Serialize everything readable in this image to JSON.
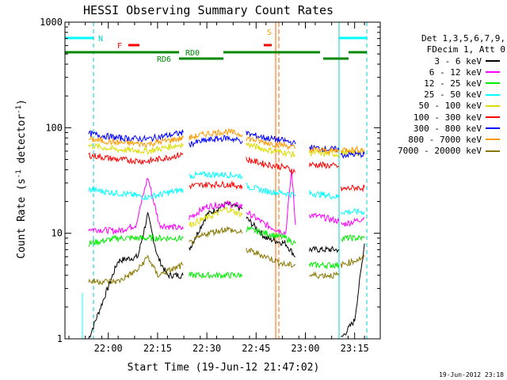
{
  "chart_data": {
    "type": "line",
    "title": "HESSI Observing Summary Count Rates",
    "xlabel": "Start Time (19-Jun-12 21:47:02)",
    "ylabel_prefix": "Count Rate (s",
    "ylabel_sup": "-1",
    "ylabel_mid": " detector",
    "ylabel_sup2": "-1",
    "ylabel_suffix": ")",
    "yscale": "log",
    "ylim": [
      1,
      1000
    ],
    "xlim_minutes": [
      21.78,
      23.38
    ],
    "xticks": [
      "22:00",
      "22:15",
      "22:30",
      "22:45",
      "23:00",
      "23:15"
    ],
    "yticks": [
      "1",
      "10",
      "100",
      "1000"
    ],
    "legend_header": [
      "Det 1,3,5,6,7,9,",
      "FDecim 1, Att 0"
    ],
    "series": [
      {
        "name": "3 - 6 keV",
        "color": "#000000",
        "segments": [
          {
            "x": [
              21.9,
              22.05,
              22.15,
              22.2,
              22.25,
              22.3,
              22.38
            ],
            "y": [
              1,
              5.5,
              6,
              15,
              6,
              4,
              4
            ]
          },
          {
            "x": [
              22.41,
              22.5,
              22.6,
              22.68
            ],
            "y": [
              7,
              15,
              19,
              17
            ]
          },
          {
            "x": [
              22.7,
              22.8,
              22.9,
              22.95
            ],
            "y": [
              14,
              9,
              8,
              6
            ]
          },
          {
            "x": [
              23.02,
              23.1,
              23.17
            ],
            "y": [
              7,
              7,
              7
            ]
          },
          {
            "x": [
              23.18,
              23.25,
              23.3
            ],
            "y": [
              1,
              1.5,
              8
            ]
          }
        ]
      },
      {
        "name": "6 - 12 keV",
        "color": "#ff00ff",
        "segments": [
          {
            "x": [
              21.9,
              22.05,
              22.14,
              22.2,
              22.26,
              22.38
            ],
            "y": [
              11,
              10.5,
              12,
              34,
              12,
              11
            ]
          },
          {
            "x": [
              22.41,
              22.5,
              22.6,
              22.68
            ],
            "y": [
              14,
              18,
              19,
              18
            ]
          },
          {
            "x": [
              22.7,
              22.8,
              22.9,
              22.93,
              22.95
            ],
            "y": [
              16,
              12,
              10,
              40,
              12
            ]
          },
          {
            "x": [
              23.02,
              23.1,
              23.17
            ],
            "y": [
              15,
              14,
              13
            ]
          },
          {
            "x": [
              23.18,
              23.25,
              23.3
            ],
            "y": [
              12,
              13,
              14
            ]
          }
        ]
      },
      {
        "name": "12 - 25 keV",
        "color": "#00ee00",
        "segments": [
          {
            "x": [
              21.9,
              22.05,
              22.2,
              22.38
            ],
            "y": [
              8,
              9,
              9,
              9
            ]
          },
          {
            "x": [
              22.41,
              22.5,
              22.6,
              22.68
            ],
            "y": [
              4,
              4,
              4,
              4
            ]
          },
          {
            "x": [
              22.7,
              22.8,
              22.9,
              22.95
            ],
            "y": [
              11,
              10,
              9,
              8
            ]
          },
          {
            "x": [
              23.02,
              23.1,
              23.17
            ],
            "y": [
              5,
              5,
              5
            ]
          },
          {
            "x": [
              23.18,
              23.25,
              23.3
            ],
            "y": [
              9,
              9,
              9
            ]
          }
        ]
      },
      {
        "name": "25 - 50 keV",
        "color": "#00ffff",
        "segments": [
          {
            "x": [
              21.9,
              22.05,
              22.2,
              22.38
            ],
            "y": [
              26,
              24,
              22,
              26
            ]
          },
          {
            "x": [
              22.41,
              22.5,
              22.6,
              22.68
            ],
            "y": [
              35,
              36,
              36,
              35
            ]
          },
          {
            "x": [
              22.7,
              22.8,
              22.9,
              22.95
            ],
            "y": [
              28,
              25,
              24,
              23
            ]
          },
          {
            "x": [
              23.02,
              23.1,
              23.17
            ],
            "y": [
              24,
              23,
              22
            ]
          },
          {
            "x": [
              23.18,
              23.25,
              23.3
            ],
            "y": [
              16,
              16,
              16
            ]
          }
        ]
      },
      {
        "name": "50 - 100 keV",
        "color": "#dddd00",
        "segments": [
          {
            "x": [
              21.9,
              22.05,
              22.2,
              22.38
            ],
            "y": [
              68,
              62,
              60,
              70
            ]
          },
          {
            "x": [
              22.41,
              22.5,
              22.6,
              22.68
            ],
            "y": [
              12,
              14,
              17,
              15
            ]
          },
          {
            "x": [
              22.7,
              22.8,
              22.9,
              22.95
            ],
            "y": [
              70,
              62,
              58,
              55
            ]
          },
          {
            "x": [
              23.02,
              23.1,
              23.17
            ],
            "y": [
              58,
              57,
              56
            ]
          },
          {
            "x": [
              23.18,
              23.25,
              23.3
            ],
            "y": [
              58,
              58,
              58
            ]
          }
        ]
      },
      {
        "name": "100 - 300 keV",
        "color": "#ff0000",
        "segments": [
          {
            "x": [
              21.9,
              22.05,
              22.2,
              22.38
            ],
            "y": [
              55,
              50,
              48,
              56
            ]
          },
          {
            "x": [
              22.41,
              22.5,
              22.6,
              22.68
            ],
            "y": [
              28,
              29,
              29,
              28
            ]
          },
          {
            "x": [
              22.7,
              22.8,
              22.9,
              22.95
            ],
            "y": [
              50,
              45,
              42,
              38
            ]
          },
          {
            "x": [
              23.02,
              23.1,
              23.17
            ],
            "y": [
              45,
              44,
              43
            ]
          },
          {
            "x": [
              23.18,
              23.25,
              23.3
            ],
            "y": [
              26,
              27,
              27
            ]
          }
        ]
      },
      {
        "name": "300 - 800 keV",
        "color": "#0000ff",
        "segments": [
          {
            "x": [
              21.9,
              22.05,
              22.2,
              22.38
            ],
            "y": [
              88,
              80,
              78,
              90
            ]
          },
          {
            "x": [
              22.41,
              22.5,
              22.6,
              22.68
            ],
            "y": [
              70,
              76,
              80,
              75
            ]
          },
          {
            "x": [
              22.7,
              22.8,
              22.9,
              22.95
            ],
            "y": [
              88,
              80,
              75,
              70
            ]
          },
          {
            "x": [
              23.02,
              23.1,
              23.17
            ],
            "y": [
              65,
              63,
              62
            ]
          },
          {
            "x": [
              23.18,
              23.25,
              23.3
            ],
            "y": [
              55,
              56,
              56
            ]
          }
        ]
      },
      {
        "name": "800 - 7000 keV",
        "color": "#ff9900",
        "segments": [
          {
            "x": [
              21.9,
              22.05,
              22.2,
              22.38
            ],
            "y": [
              78,
              72,
              70,
              80
            ]
          },
          {
            "x": [
              22.41,
              22.5,
              22.6,
              22.68
            ],
            "y": [
              80,
              88,
              92,
              86
            ]
          },
          {
            "x": [
              22.7,
              22.8,
              22.9,
              22.95
            ],
            "y": [
              80,
              72,
              68,
              64
            ]
          },
          {
            "x": [
              23.02,
              23.1,
              23.17
            ],
            "y": [
              62,
              61,
              60
            ]
          },
          {
            "x": [
              23.18,
              23.25,
              23.3
            ],
            "y": [
              62,
              62,
              62
            ]
          }
        ]
      },
      {
        "name": "7000 - 20000 keV",
        "color": "#887700",
        "segments": [
          {
            "x": [
              21.9,
              22.05,
              22.15,
              22.2,
              22.25,
              22.38
            ],
            "y": [
              3.5,
              3.5,
              4.5,
              6,
              4,
              5
            ]
          },
          {
            "x": [
              22.41,
              22.5,
              22.6,
              22.68
            ],
            "y": [
              8,
              10,
              11,
              10
            ]
          },
          {
            "x": [
              22.7,
              22.8,
              22.9,
              22.95
            ],
            "y": [
              7,
              6,
              5,
              5
            ]
          },
          {
            "x": [
              23.02,
              23.1,
              23.17
            ],
            "y": [
              4,
              4,
              4
            ]
          },
          {
            "x": [
              23.18,
              23.25,
              23.3
            ],
            "y": [
              5,
              5.5,
              6
            ]
          }
        ]
      }
    ],
    "annotations": [
      {
        "text": "N",
        "color": "#00cccc"
      },
      {
        "text": "F",
        "color": "#ff0000"
      },
      {
        "text": "S",
        "color": "#ff9900"
      },
      {
        "text": "RD0",
        "color": "#008800"
      },
      {
        "text": "RD6",
        "color": "#008800"
      }
    ]
  },
  "footer": "19-Jun-2012 23:18"
}
